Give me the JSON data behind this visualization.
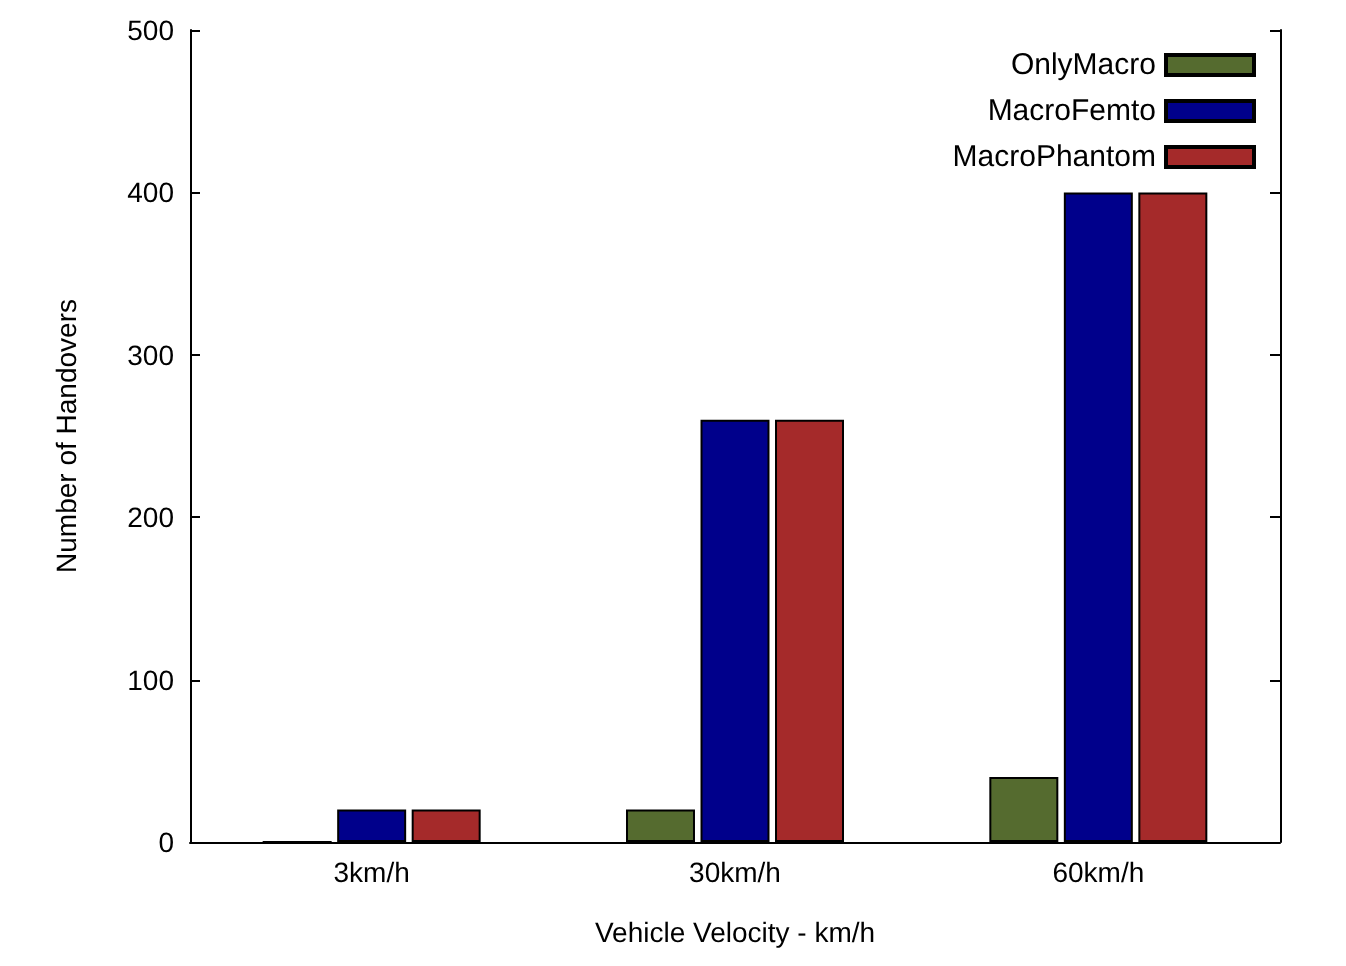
{
  "chart_data": {
    "type": "bar",
    "xlabel": "Vehicle Velocity - km/h",
    "ylabel": "Number of Handovers",
    "categories": [
      "3km/h",
      "30km/h",
      "60km/h"
    ],
    "series": [
      {
        "name": "OnlyMacro",
        "color": "#556b2f",
        "values": [
          0,
          20,
          40
        ]
      },
      {
        "name": "MacroFemto",
        "color": "#00008b",
        "values": [
          20,
          260,
          400
        ]
      },
      {
        "name": "MacroPhantom",
        "color": "#a52a2a",
        "values": [
          20,
          260,
          400
        ]
      }
    ],
    "ylim": [
      0,
      500
    ],
    "yticks": [
      0,
      100,
      200,
      300,
      400,
      500
    ],
    "grid": false,
    "legend": "top right"
  }
}
